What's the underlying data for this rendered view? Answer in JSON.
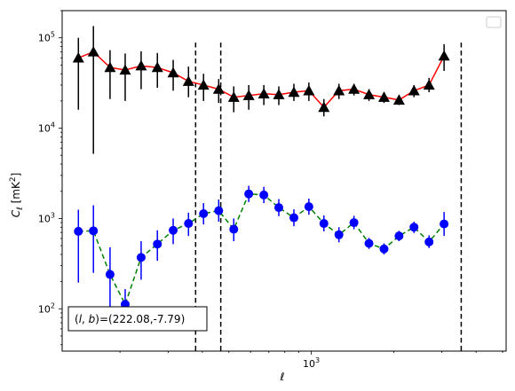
{
  "chart_data": {
    "type": "line",
    "title": "",
    "xlabel": "ℓ",
    "ylabel": "Cℓ  [mK²]",
    "xscale": "log",
    "yscale": "log",
    "xlim": [
      123,
      5150
    ],
    "ylim": [
      34,
      200000
    ],
    "x_tick_labels": [
      {
        "value": 1000,
        "label": "10",
        "exp": "3"
      }
    ],
    "y_tick_labels": [
      {
        "value": 100,
        "label": "10",
        "exp": "2"
      },
      {
        "value": 1000,
        "label": "10",
        "exp": "3"
      },
      {
        "value": 10000,
        "label": "10",
        "exp": "4"
      },
      {
        "value": 100000,
        "label": "10",
        "exp": "5"
      }
    ],
    "grid": false,
    "legend": "upper right (empty)",
    "vlines": [
      378,
      467,
      3530
    ],
    "annotation": "(l, b)=(222.08,-7.79)",
    "annotation_parts": {
      "open": "(",
      "l": "l",
      "comma": ", ",
      "b": "b",
      "rest": ")=(222.08,-7.79)"
    },
    "series": [
      {
        "line_color": "#ff0000",
        "marker_color": "#000000",
        "marker": "triangle",
        "linestyle": "solid",
        "points": [
          {
            "x": 141,
            "y": 60000,
            "lo": 16000,
            "hi": 100000
          },
          {
            "x": 160,
            "y": 70000,
            "lo": 5200,
            "hi": 135000
          },
          {
            "x": 184,
            "y": 47000,
            "lo": 21000,
            "hi": 73000
          },
          {
            "x": 209,
            "y": 44000,
            "lo": 20000,
            "hi": 67000
          },
          {
            "x": 239,
            "y": 49000,
            "lo": 27000,
            "hi": 71000
          },
          {
            "x": 274,
            "y": 47000,
            "lo": 28000,
            "hi": 68000
          },
          {
            "x": 313,
            "y": 41000,
            "lo": 26000,
            "hi": 57000
          },
          {
            "x": 356,
            "y": 33000,
            "lo": 22000,
            "hi": 48000
          },
          {
            "x": 404,
            "y": 30000,
            "lo": 20000,
            "hi": 40000
          },
          {
            "x": 459,
            "y": 27000,
            "lo": 19000,
            "hi": 35000
          },
          {
            "x": 521,
            "y": 22000,
            "lo": 15000,
            "hi": 29000
          },
          {
            "x": 591,
            "y": 23000,
            "lo": 16000,
            "hi": 30000
          },
          {
            "x": 671,
            "y": 24000,
            "lo": 18000,
            "hi": 30000
          },
          {
            "x": 761,
            "y": 23500,
            "lo": 18000,
            "hi": 29000
          },
          {
            "x": 864,
            "y": 25000,
            "lo": 20000,
            "hi": 31000
          },
          {
            "x": 980,
            "y": 26000,
            "lo": 20000,
            "hi": 32000
          },
          {
            "x": 1112,
            "y": 17000,
            "lo": 13500,
            "hi": 21000
          },
          {
            "x": 1262,
            "y": 26000,
            "lo": 21000,
            "hi": 31000
          },
          {
            "x": 1432,
            "y": 27000,
            "lo": 23000,
            "hi": 31000
          },
          {
            "x": 1625,
            "y": 23500,
            "lo": 20000,
            "hi": 27000
          },
          {
            "x": 1844,
            "y": 22000,
            "lo": 19000,
            "hi": 25000
          },
          {
            "x": 2092,
            "y": 20500,
            "lo": 18000,
            "hi": 23000
          },
          {
            "x": 2373,
            "y": 26000,
            "lo": 22000,
            "hi": 30000
          },
          {
            "x": 2693,
            "y": 30000,
            "lo": 25000,
            "hi": 36000
          },
          {
            "x": 3056,
            "y": 63000,
            "lo": 43000,
            "hi": 85000
          }
        ]
      },
      {
        "line_color": "#008000",
        "marker_color": "#0000ff",
        "marker": "circle",
        "linestyle": "dashed",
        "points": [
          {
            "x": 141,
            "y": 720,
            "lo": 195,
            "hi": 1250
          },
          {
            "x": 160,
            "y": 730,
            "lo": 250,
            "hi": 1400
          },
          {
            "x": 184,
            "y": 240,
            "lo": 100,
            "hi": 480
          },
          {
            "x": 209,
            "y": 112,
            "lo": 76,
            "hi": 165
          },
          {
            "x": 239,
            "y": 370,
            "lo": 210,
            "hi": 560
          },
          {
            "x": 274,
            "y": 520,
            "lo": 340,
            "hi": 740
          },
          {
            "x": 313,
            "y": 740,
            "lo": 520,
            "hi": 1000
          },
          {
            "x": 356,
            "y": 880,
            "lo": 640,
            "hi": 1160
          },
          {
            "x": 404,
            "y": 1130,
            "lo": 860,
            "hi": 1480
          },
          {
            "x": 459,
            "y": 1220,
            "lo": 920,
            "hi": 1620
          },
          {
            "x": 521,
            "y": 760,
            "lo": 560,
            "hi": 1000
          },
          {
            "x": 591,
            "y": 1870,
            "lo": 1520,
            "hi": 2300
          },
          {
            "x": 671,
            "y": 1820,
            "lo": 1480,
            "hi": 2240
          },
          {
            "x": 761,
            "y": 1320,
            "lo": 1060,
            "hi": 1640
          },
          {
            "x": 864,
            "y": 1020,
            "lo": 820,
            "hi": 1260
          },
          {
            "x": 980,
            "y": 1350,
            "lo": 1100,
            "hi": 1660
          },
          {
            "x": 1112,
            "y": 880,
            "lo": 720,
            "hi": 1080
          },
          {
            "x": 1262,
            "y": 660,
            "lo": 545,
            "hi": 800
          },
          {
            "x": 1432,
            "y": 900,
            "lo": 760,
            "hi": 1070
          },
          {
            "x": 1625,
            "y": 530,
            "lo": 460,
            "hi": 610
          },
          {
            "x": 1844,
            "y": 460,
            "lo": 400,
            "hi": 530
          },
          {
            "x": 2092,
            "y": 640,
            "lo": 560,
            "hi": 730
          },
          {
            "x": 2373,
            "y": 800,
            "lo": 690,
            "hi": 920
          },
          {
            "x": 2693,
            "y": 550,
            "lo": 470,
            "hi": 650
          },
          {
            "x": 3056,
            "y": 870,
            "lo": 640,
            "hi": 1180
          }
        ]
      }
    ]
  }
}
